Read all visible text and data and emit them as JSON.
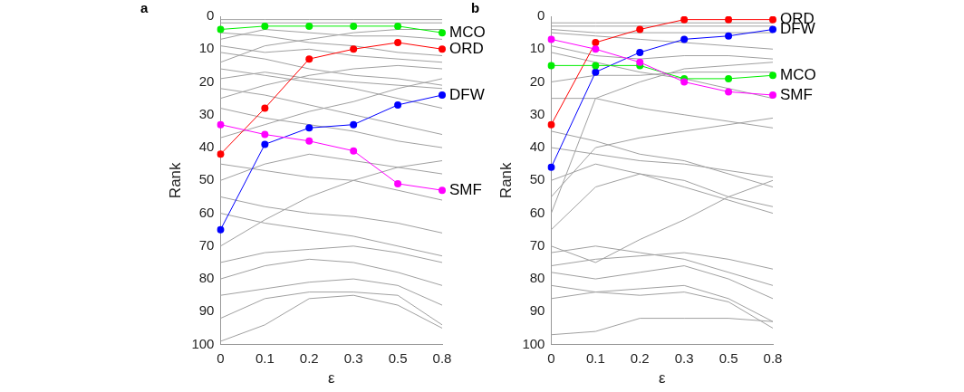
{
  "chart_data": [
    {
      "type": "line",
      "title": "a",
      "xlabel": "ε",
      "ylabel": "Rank",
      "categories": [
        "0",
        "0.1",
        "0.2",
        "0.3",
        "0.5",
        "0.8"
      ],
      "ylim": [
        100,
        0
      ],
      "yticks": [
        0,
        10,
        20,
        30,
        40,
        50,
        60,
        70,
        80,
        90,
        100
      ],
      "grid": false,
      "legend": false,
      "series": [
        {
          "color": "#a0a0a0",
          "marker": "none",
          "values": [
            1,
            1,
            1,
            1,
            1,
            1
          ]
        },
        {
          "color": "#a0a0a0",
          "marker": "none",
          "values": [
            2,
            2,
            2,
            2,
            2,
            2
          ]
        },
        {
          "color": "#a0a0a0",
          "marker": "none",
          "values": [
            5,
            6,
            8,
            9,
            11,
            12
          ]
        },
        {
          "color": "#a0a0a0",
          "marker": "none",
          "values": [
            7,
            4,
            5,
            6,
            6,
            7
          ]
        },
        {
          "color": "#a0a0a0",
          "marker": "none",
          "values": [
            9,
            11,
            10,
            12,
            13,
            14
          ]
        },
        {
          "color": "#a0a0a0",
          "marker": "none",
          "values": [
            11,
            13,
            16,
            18,
            19,
            21
          ]
        },
        {
          "color": "#a0a0a0",
          "marker": "none",
          "values": [
            14,
            9,
            7,
            5,
            4,
            4
          ]
        },
        {
          "color": "#a0a0a0",
          "marker": "none",
          "values": [
            16,
            18,
            20,
            22,
            25,
            28
          ]
        },
        {
          "color": "#a0a0a0",
          "marker": "none",
          "values": [
            19,
            17,
            19,
            20,
            21,
            22
          ]
        },
        {
          "color": "#a0a0a0",
          "marker": "none",
          "values": [
            22,
            24,
            27,
            30,
            33,
            36
          ]
        },
        {
          "color": "#a0a0a0",
          "marker": "none",
          "values": [
            25,
            21,
            18,
            16,
            15,
            16
          ]
        },
        {
          "color": "#a0a0a0",
          "marker": "none",
          "values": [
            28,
            31,
            33,
            35,
            38,
            40
          ]
        },
        {
          "color": "#a0a0a0",
          "marker": "none",
          "values": [
            37,
            33,
            29,
            26,
            22,
            19
          ]
        },
        {
          "color": "#a0a0a0",
          "marker": "none",
          "values": [
            45,
            47,
            49,
            50,
            53,
            56
          ]
        },
        {
          "color": "#a0a0a0",
          "marker": "none",
          "values": [
            50,
            45,
            42,
            44,
            46,
            48
          ]
        },
        {
          "color": "#a0a0a0",
          "marker": "none",
          "values": [
            55,
            58,
            60,
            61,
            63,
            66
          ]
        },
        {
          "color": "#a0a0a0",
          "marker": "none",
          "values": [
            60,
            63,
            65,
            67,
            70,
            73
          ]
        },
        {
          "color": "#a0a0a0",
          "marker": "none",
          "values": [
            70,
            62,
            55,
            50,
            46,
            44
          ]
        },
        {
          "color": "#a0a0a0",
          "marker": "none",
          "values": [
            75,
            72,
            71,
            70,
            72,
            75
          ]
        },
        {
          "color": "#a0a0a0",
          "marker": "none",
          "values": [
            80,
            76,
            74,
            75,
            78,
            82
          ]
        },
        {
          "color": "#a0a0a0",
          "marker": "none",
          "values": [
            85,
            83,
            81,
            80,
            82,
            88
          ]
        },
        {
          "color": "#a0a0a0",
          "marker": "none",
          "values": [
            92,
            86,
            84,
            84,
            85,
            94
          ]
        },
        {
          "color": "#a0a0a0",
          "marker": "none",
          "values": [
            99,
            94,
            86,
            85,
            88,
            95
          ]
        },
        {
          "name": "MCO",
          "color": "#00ee00",
          "marker": "circle",
          "values": [
            4,
            3,
            3,
            3,
            3,
            5
          ]
        },
        {
          "name": "ORD",
          "color": "#ff0000",
          "marker": "circle",
          "values": [
            42,
            28,
            13,
            10,
            8,
            10
          ]
        },
        {
          "name": "DFW",
          "color": "#0000ff",
          "marker": "circle",
          "values": [
            65,
            39,
            34,
            33,
            27,
            24
          ]
        },
        {
          "name": "SMF",
          "color": "#ff00ff",
          "marker": "circle",
          "values": [
            33,
            36,
            38,
            41,
            51,
            53
          ]
        }
      ]
    },
    {
      "type": "line",
      "title": "b",
      "xlabel": "ε",
      "ylabel": "Rank",
      "categories": [
        "0",
        "0.1",
        "0.2",
        "0.3",
        "0.5",
        "0.8"
      ],
      "ylim": [
        100,
        0
      ],
      "yticks": [
        0,
        10,
        20,
        30,
        40,
        50,
        60,
        70,
        80,
        90,
        100
      ],
      "grid": false,
      "legend": false,
      "series": [
        {
          "color": "#a0a0a0",
          "marker": "none",
          "values": [
            2,
            2,
            2,
            2,
            2,
            2
          ]
        },
        {
          "color": "#a0a0a0",
          "marker": "none",
          "values": [
            3,
            3,
            3,
            3,
            3,
            3
          ]
        },
        {
          "color": "#a0a0a0",
          "marker": "none",
          "values": [
            4,
            5,
            5,
            5,
            5,
            5
          ]
        },
        {
          "color": "#a0a0a0",
          "marker": "none",
          "values": [
            5,
            6,
            7,
            8,
            9,
            10
          ]
        },
        {
          "color": "#a0a0a0",
          "marker": "none",
          "values": [
            9,
            12,
            13,
            12,
            12,
            13
          ]
        },
        {
          "color": "#a0a0a0",
          "marker": "none",
          "values": [
            11,
            14,
            17,
            19,
            22,
            25
          ]
        },
        {
          "color": "#a0a0a0",
          "marker": "none",
          "values": [
            20,
            18,
            18,
            17,
            17,
            17
          ]
        },
        {
          "color": "#a0a0a0",
          "marker": "none",
          "values": [
            25,
            25,
            28,
            30,
            32,
            34
          ]
        },
        {
          "color": "#a0a0a0",
          "marker": "none",
          "values": [
            35,
            38,
            42,
            44,
            48,
            52
          ]
        },
        {
          "color": "#a0a0a0",
          "marker": "none",
          "values": [
            40,
            42,
            44,
            45,
            47,
            49
          ]
        },
        {
          "color": "#a0a0a0",
          "marker": "none",
          "values": [
            50,
            45,
            48,
            52,
            56,
            60
          ]
        },
        {
          "color": "#a0a0a0",
          "marker": "none",
          "values": [
            55,
            40,
            37,
            35,
            33,
            31
          ]
        },
        {
          "color": "#a0a0a0",
          "marker": "none",
          "values": [
            60,
            25,
            20,
            16,
            15,
            14
          ]
        },
        {
          "color": "#a0a0a0",
          "marker": "none",
          "values": [
            65,
            52,
            48,
            50,
            55,
            58
          ]
        },
        {
          "color": "#a0a0a0",
          "marker": "none",
          "values": [
            70,
            75,
            68,
            62,
            55,
            50
          ]
        },
        {
          "color": "#a0a0a0",
          "marker": "none",
          "values": [
            72,
            70,
            72,
            74,
            78,
            82
          ]
        },
        {
          "color": "#a0a0a0",
          "marker": "none",
          "values": [
            76,
            74,
            73,
            72,
            74,
            77
          ]
        },
        {
          "color": "#a0a0a0",
          "marker": "none",
          "values": [
            78,
            80,
            78,
            76,
            80,
            86
          ]
        },
        {
          "color": "#a0a0a0",
          "marker": "none",
          "values": [
            82,
            84,
            83,
            82,
            86,
            93
          ]
        },
        {
          "color": "#a0a0a0",
          "marker": "none",
          "values": [
            86,
            84,
            85,
            84,
            87,
            95
          ]
        },
        {
          "color": "#a0a0a0",
          "marker": "none",
          "values": [
            97,
            96,
            92,
            92,
            92,
            93
          ]
        },
        {
          "name": "ORD",
          "color": "#ff0000",
          "marker": "circle",
          "values": [
            33,
            8,
            4,
            1,
            1,
            1
          ]
        },
        {
          "name": "DFW",
          "color": "#0000ff",
          "marker": "circle",
          "values": [
            46,
            17,
            11,
            7,
            6,
            4
          ]
        },
        {
          "name": "MCO",
          "color": "#00ee00",
          "marker": "circle",
          "values": [
            15,
            15,
            15,
            19,
            19,
            18
          ]
        },
        {
          "name": "SMF",
          "color": "#ff00ff",
          "marker": "circle",
          "values": [
            7,
            10,
            14,
            20,
            23,
            24
          ]
        }
      ]
    }
  ]
}
